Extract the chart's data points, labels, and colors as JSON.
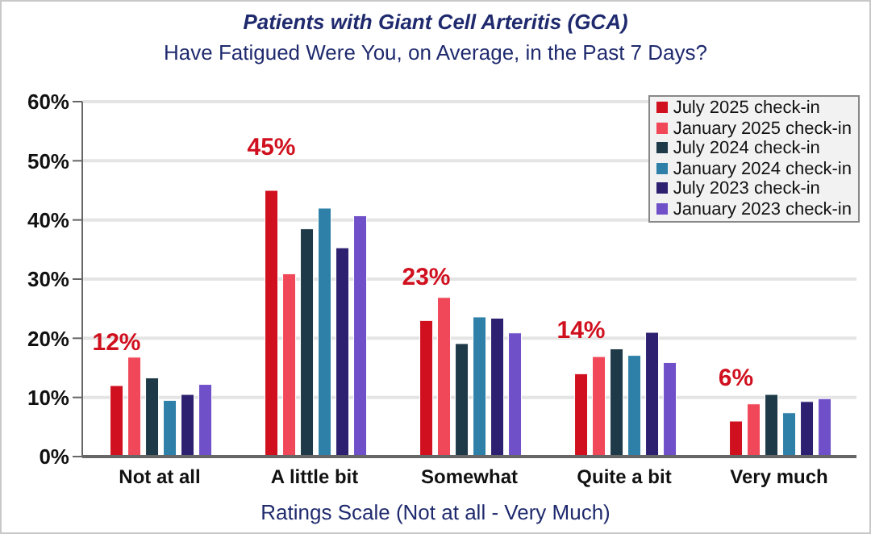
{
  "chart_data": {
    "type": "bar",
    "title": "Patients with Giant Cell Arteritis (GCA)",
    "subtitle": "Have Fatigued Were You, on Average, in the Past 7 Days?",
    "xlabel": "Ratings Scale (Not at all - Very Much)",
    "categories": [
      "Not at all",
      "A little bit",
      "Somewhat",
      "Quite a bit",
      "Very much"
    ],
    "series": [
      {
        "name": "July 2025 check-in",
        "color": "#d0101e",
        "values": [
          12,
          45,
          23,
          14,
          6
        ],
        "value_labels": [
          "12%",
          "45%",
          "23%",
          "14%",
          "6%"
        ]
      },
      {
        "name": "January 2025 check-in",
        "color": "#f04858",
        "values": [
          16.8,
          30.9,
          26.9,
          16.9,
          8.9
        ]
      },
      {
        "name": "July 2024 check-in",
        "color": "#1e3a48",
        "values": [
          13.3,
          38.5,
          19.1,
          18.2,
          10.5
        ]
      },
      {
        "name": "January 2024 check-in",
        "color": "#2e80a8",
        "values": [
          9.5,
          42,
          23.6,
          17.1,
          7.4
        ]
      },
      {
        "name": "July 2023 check-in",
        "color": "#2e2070",
        "values": [
          10.5,
          35.3,
          23.4,
          21,
          9.3
        ]
      },
      {
        "name": "January 2023 check-in",
        "color": "#7050c8",
        "values": [
          12.2,
          40.7,
          20.9,
          15.9,
          9.8
        ]
      }
    ],
    "ylim": [
      0,
      60
    ],
    "yticks": [
      {
        "value": 0,
        "label": "0%"
      },
      {
        "value": 10,
        "label": "10%"
      },
      {
        "value": 20,
        "label": "20%"
      },
      {
        "value": 30,
        "label": "30%"
      },
      {
        "value": 40,
        "label": "40%"
      },
      {
        "value": 50,
        "label": "50%"
      },
      {
        "value": 60,
        "label": "60%"
      }
    ],
    "grid": "y",
    "legend": "top right"
  }
}
